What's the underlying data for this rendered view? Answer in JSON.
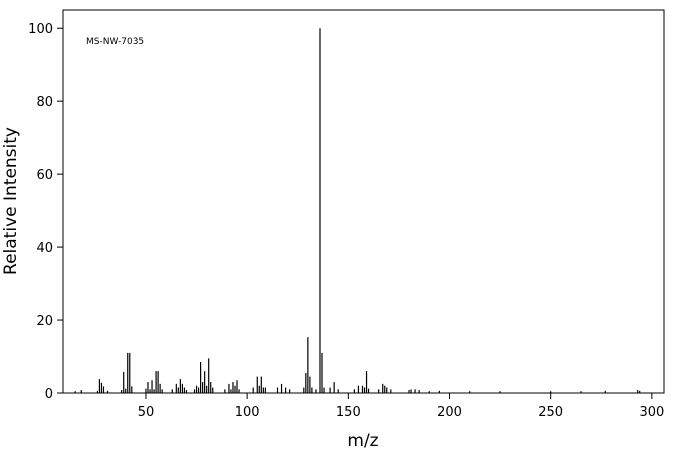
{
  "chart_data": {
    "type": "stem",
    "annotation": "MS-NW-7035",
    "xlabel": "m/z",
    "ylabel": "Relative Intensity",
    "xlim": [
      9,
      306
    ],
    "ylim": [
      0,
      105
    ],
    "xticks": [
      50,
      100,
      150,
      200,
      250,
      300
    ],
    "yticks": [
      0,
      20,
      40,
      60,
      80,
      100
    ],
    "color": "#000000",
    "x": [
      15,
      18,
      26,
      27,
      28,
      29,
      31,
      38,
      39,
      40,
      41,
      42,
      43,
      50,
      51,
      52,
      53,
      54,
      55,
      56,
      57,
      58,
      63,
      65,
      66,
      67,
      68,
      69,
      70,
      74,
      75,
      76,
      77,
      78,
      79,
      80,
      81,
      82,
      83,
      89,
      91,
      92,
      93,
      94,
      95,
      96,
      103,
      105,
      106,
      107,
      108,
      109,
      115,
      117,
      119,
      121,
      128,
      129,
      130,
      131,
      132,
      134,
      136,
      137,
      138,
      141,
      143,
      145,
      153,
      155,
      157,
      158,
      159,
      160,
      165,
      167,
      168,
      169,
      171,
      180,
      181,
      183,
      185,
      190,
      195,
      210,
      225,
      250,
      265,
      277,
      293,
      294
    ],
    "values": [
      0.5,
      0.8,
      0.6,
      3.8,
      2.8,
      1.8,
      0.6,
      0.8,
      5.8,
      1.2,
      11,
      11,
      1.8,
      1.2,
      3,
      1,
      3.5,
      1,
      6,
      6,
      2.5,
      1,
      1,
      2.5,
      1.5,
      3.8,
      2.5,
      1.5,
      0.8,
      1,
      2,
      1.5,
      8.5,
      3,
      6,
      2,
      9.5,
      3,
      1.5,
      1,
      2.5,
      1,
      3,
      2,
      3.5,
      1,
      1.5,
      4.5,
      2,
      4.5,
      1.5,
      1.5,
      1.5,
      2.5,
      1.5,
      1,
      1.5,
      5.5,
      15.3,
      4.5,
      1.5,
      1,
      100,
      11,
      1.5,
      1.5,
      3,
      1,
      1,
      2,
      2,
      1.5,
      6,
      1.2,
      1,
      2.5,
      2,
      1.5,
      1,
      0.8,
      1,
      1,
      0.8,
      0.5,
      0.6,
      0.5,
      0.5,
      0.5,
      0.5,
      0.6,
      0.8,
      0.6
    ]
  }
}
